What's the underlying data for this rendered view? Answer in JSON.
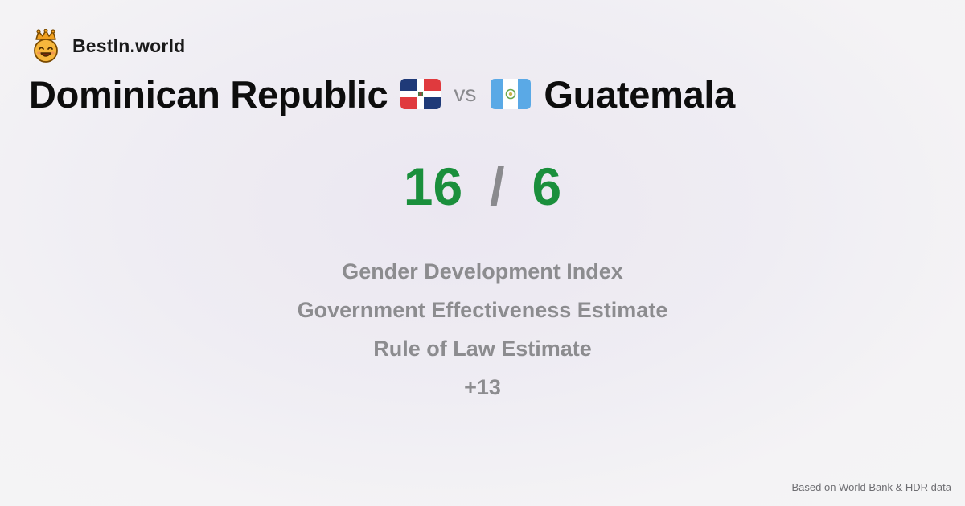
{
  "brand": {
    "name": "BestIn.world",
    "logo_icon": "crown-smiley-icon"
  },
  "comparison": {
    "left": {
      "name": "Dominican Republic",
      "flag_icon": "dominican-republic-flag-icon"
    },
    "separator": "vs",
    "right": {
      "name": "Guatemala",
      "flag_icon": "guatemala-flag-icon"
    }
  },
  "score": {
    "left": "16",
    "separator": "/",
    "right": "6",
    "color": "#1a8f3c"
  },
  "metrics": [
    "Gender Development Index",
    "Government Effectiveness Estimate",
    "Rule of Law Estimate",
    "+13"
  ],
  "footer": {
    "source_note": "Based on World Bank & HDR data"
  }
}
